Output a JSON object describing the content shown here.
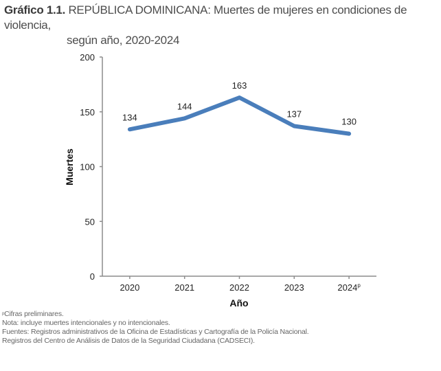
{
  "header": {
    "label": "Gráfico 1.1.",
    "title_line1": "REPÚBLICA DOMINICANA: Muertes de mujeres en condiciones de violencia,",
    "title_line2": "según año, 2020-2024"
  },
  "chart_data": {
    "type": "line",
    "title": "Gráfico 1.1. REPÚBLICA DOMINICANA: Muertes de mujeres en condiciones de violencia, según año, 2020-2024",
    "categories": [
      "2020",
      "2021",
      "2022",
      "2023",
      "2024"
    ],
    "category_superscripts": [
      "",
      "",
      "",
      "",
      "p"
    ],
    "series": [
      {
        "name": "Muertes",
        "values": [
          134,
          144,
          163,
          137,
          130
        ],
        "color": "#4a7ebb"
      }
    ],
    "data_labels": [
      "134",
      "144",
      "163",
      "137",
      "130"
    ],
    "xlabel": "Año",
    "ylabel": "Muertes",
    "ylim": [
      0,
      200
    ],
    "yticks": [
      0,
      50,
      100,
      150,
      200
    ],
    "grid": false,
    "legend": "none"
  },
  "notes": {
    "preliminary_mark": "p",
    "preliminary": "Cifras preliminares.",
    "note": "Nota: incluye muertes intencionales y no intencionales.",
    "source1": "Fuentes: Registros administrativos de la Oficina de Estadísticas y Cartografía de la Policía Nacional.",
    "source2": "Registros del Centro de Análisis de Datos de la Seguridad Ciudadana (CADSECI)."
  }
}
